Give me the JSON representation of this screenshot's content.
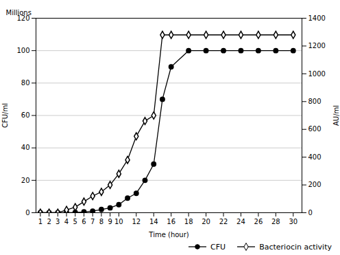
{
  "chart_data": {
    "type": "line",
    "x": [
      1,
      2,
      3,
      4,
      5,
      6,
      7,
      8,
      9,
      10,
      11,
      12,
      13,
      14,
      15,
      16,
      18,
      20,
      22,
      24,
      26,
      28,
      30
    ],
    "series": [
      {
        "name": "CFU",
        "color": "black",
        "marker": "circle",
        "values": [
          0,
          0,
          0,
          0,
          0.2,
          0.5,
          1,
          2,
          3,
          5,
          9,
          12,
          20,
          30,
          70,
          90,
          100,
          100,
          100,
          100,
          100,
          100,
          100
        ]
      },
      {
        "name": "Bacteriocin activity",
        "color": "black",
        "marker": "diamond",
        "axis": "y2",
        "values": [
          0,
          0,
          0,
          20,
          40,
          80,
          120,
          150,
          200,
          280,
          380,
          550,
          660,
          700,
          1280,
          1280,
          1280,
          1280,
          1280,
          1280,
          1280,
          1280,
          1280
        ]
      }
    ],
    "xlabel": "Time (hour)",
    "ylabel": "CFU/ml",
    "y2label": "AU/ml",
    "annotations": [
      "Millions"
    ],
    "xlim": [
      0.5,
      31
    ],
    "xticks": [
      1,
      2,
      3,
      4,
      5,
      6,
      7,
      8,
      9,
      10,
      12,
      14,
      16,
      18,
      20,
      22,
      24,
      26,
      28,
      30
    ],
    "ylim": [
      0,
      120
    ],
    "yticks": [
      0,
      20,
      40,
      60,
      80,
      100,
      120
    ],
    "y2lim": [
      0,
      1400
    ],
    "y2ticks": [
      0,
      200,
      400,
      600,
      800,
      1000,
      1200,
      1400
    ],
    "grid": true,
    "legend": "right"
  }
}
